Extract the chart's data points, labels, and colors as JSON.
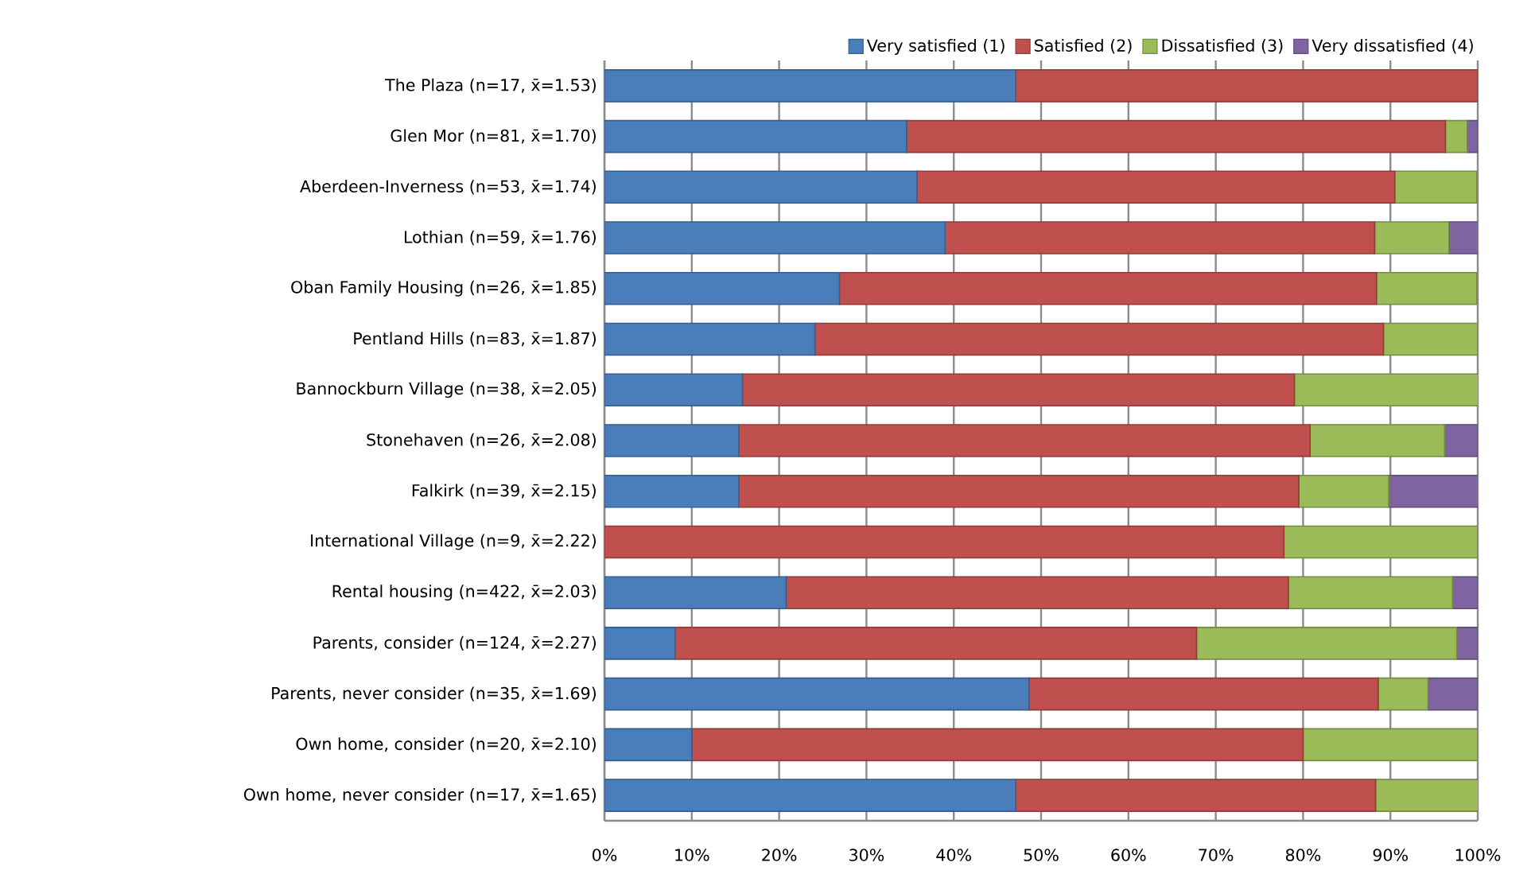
{
  "chart_data": {
    "type": "bar",
    "orientation": "horizontal",
    "stacked": true,
    "categories": [
      "The Plaza (n=17, x̄=1.53)",
      "Glen Mor (n=81, x̄=1.70)",
      "Aberdeen-Inverness (n=53, x̄=1.74)",
      "Lothian (n=59, x̄=1.76)",
      "Oban Family Housing (n=26, x̄=1.85)",
      "Pentland Hills (n=83, x̄=1.87)",
      "Bannockburn Village (n=38, x̄=2.05)",
      "Stonehaven (n=26, x̄=2.08)",
      "Falkirk (n=39, x̄=2.15)",
      "International Village (n=9, x̄=2.22)",
      "Rental housing (n=422, x̄=2.03)",
      "Parents, consider (n=124, x̄=2.27)",
      "Parents, never consider (n=35, x̄=1.69)",
      "Own home, consider (n=20, x̄=2.10)",
      "Own home, never consider (n=17, x̄=1.65)"
    ],
    "series": [
      {
        "name": "Very satisfied (1)",
        "color": "#4a7ebb",
        "values": [
          47.1,
          34.6,
          35.8,
          39.0,
          26.9,
          24.1,
          15.8,
          15.4,
          15.4,
          0,
          20.8,
          8.1,
          48.6,
          10.0,
          47.1
        ]
      },
      {
        "name": "Satisfied (2)",
        "color": "#c0504d",
        "values": [
          52.9,
          61.7,
          54.7,
          49.2,
          61.5,
          65.1,
          63.2,
          65.4,
          64.1,
          77.8,
          57.5,
          59.7,
          40.0,
          70.0,
          41.2
        ]
      },
      {
        "name": "Dissatisfied (3)",
        "color": "#9bbb59",
        "values": [
          0,
          2.5,
          9.4,
          8.5,
          11.5,
          10.8,
          21.1,
          15.4,
          10.3,
          22.2,
          18.8,
          29.8,
          5.7,
          20.0,
          11.8
        ]
      },
      {
        "name": "Very dissatisfied (4)",
        "color": "#8064a2",
        "values": [
          0,
          1.2,
          0,
          3.4,
          0,
          0,
          0,
          3.8,
          10.3,
          0,
          2.9,
          2.4,
          5.7,
          0,
          0
        ]
      }
    ],
    "xlim": [
      0,
      100
    ],
    "xticks": [
      {
        "value": 0,
        "label": "0%"
      },
      {
        "value": 10,
        "label": "10%"
      },
      {
        "value": 20,
        "label": "20%"
      },
      {
        "value": 30,
        "label": "30%"
      },
      {
        "value": 40,
        "label": "40%"
      },
      {
        "value": 50,
        "label": "50%"
      },
      {
        "value": 60,
        "label": "60%"
      },
      {
        "value": 70,
        "label": "70%"
      },
      {
        "value": 80,
        "label": "80%"
      },
      {
        "value": 90,
        "label": "90%"
      },
      {
        "value": 100,
        "label": "100%"
      }
    ],
    "grid": "x",
    "legend": "top right"
  }
}
